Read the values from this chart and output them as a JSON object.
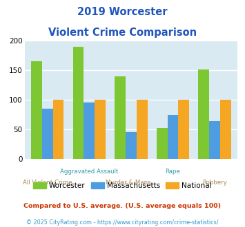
{
  "title_line1": "2019 Worcester",
  "title_line2": "Violent Crime Comparison",
  "categories": [
    "All Violent Crime",
    "Aggravated Assault",
    "Murder & Mans...",
    "Rape",
    "Robbery"
  ],
  "cat_row1": [
    "",
    "Aggravated Assault",
    "",
    "Rape",
    ""
  ],
  "cat_row2": [
    "All Violent Crime",
    "",
    "Murder & Mans...",
    "",
    "Robbery"
  ],
  "series": {
    "Worcester": [
      165,
      190,
      140,
      52,
      152
    ],
    "Massachusetts": [
      85,
      96,
      45,
      75,
      64
    ],
    "National": [
      100,
      100,
      100,
      100,
      100
    ]
  },
  "colors": {
    "Worcester": "#7dc832",
    "Massachusetts": "#4d9de0",
    "National": "#f5a623"
  },
  "ylim": [
    0,
    200
  ],
  "yticks": [
    0,
    50,
    100,
    150,
    200
  ],
  "plot_bg": "#daeaf3",
  "title_color": "#2255bb",
  "footnote1": "Compared to U.S. average. (U.S. average equals 100)",
  "footnote2": "© 2025 CityRating.com - https://www.cityrating.com/crime-statistics/",
  "footnote1_color": "#cc3300",
  "footnote2_color": "#3399cc",
  "bar_width": 0.26,
  "row1_colors": [
    "#3399cc",
    "#3399cc",
    "#3399cc",
    "#3399cc",
    "#3399cc"
  ],
  "row2_colors": [
    "#cc9966",
    "#cc9966",
    "#cc9966",
    "#cc9966",
    "#cc9966"
  ]
}
